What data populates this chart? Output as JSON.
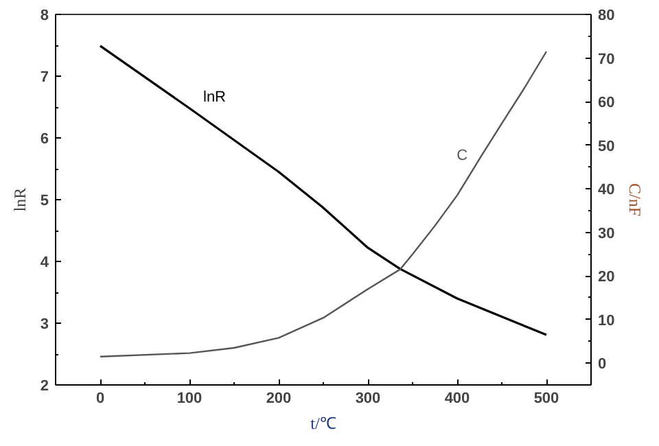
{
  "chart_data": {
    "type": "line",
    "xlabel": "t/℃",
    "ylabel": "lnR",
    "y2label": "C/nF",
    "xlim": [
      -50,
      550
    ],
    "xticks": [
      0,
      100,
      200,
      300,
      400,
      500
    ],
    "ylim": [
      2,
      8
    ],
    "yticks": [
      2,
      3,
      4,
      5,
      6,
      7,
      8
    ],
    "y2lim": [
      -5,
      80
    ],
    "y2ticks": [
      0,
      10,
      20,
      30,
      40,
      50,
      60,
      70,
      80
    ],
    "grid": false,
    "series": [
      {
        "name": "lnR",
        "color": "#000000",
        "x": [
          0,
          100,
          200,
          249,
          300,
          336,
          400,
          500
        ],
        "values": [
          7.49,
          6.48,
          5.45,
          4.88,
          4.22,
          3.88,
          3.4,
          2.81
        ]
      },
      {
        "name": "C",
        "color": "#555555",
        "axis": "y2",
        "x": [
          0,
          100,
          150,
          200,
          250,
          300,
          336,
          350,
          375,
          400,
          427,
          450,
          475,
          500
        ],
        "values": [
          1.5,
          2.3,
          3.5,
          5.8,
          10.4,
          17,
          21.5,
          25,
          31.5,
          38.5,
          47.5,
          55,
          63,
          71.5
        ]
      }
    ]
  }
}
